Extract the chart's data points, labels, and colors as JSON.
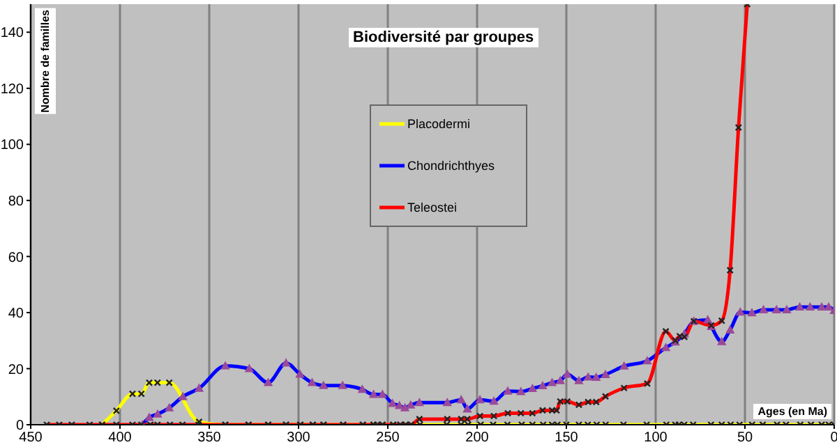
{
  "chart_data": {
    "type": "line",
    "title": "Biodiversité par groupes",
    "xlabel": "Ages (en Ma)",
    "ylabel": "Nombre de familles",
    "xlim": [
      450,
      0
    ],
    "xticks": [
      450,
      400,
      350,
      300,
      250,
      200,
      150,
      100,
      50,
      0
    ],
    "ylim": [
      0,
      150
    ],
    "yticks": [
      0,
      20,
      40,
      60,
      80,
      100,
      120,
      140
    ],
    "grid": "x",
    "legend": "top",
    "series": [
      {
        "name": "Placodermi",
        "color": "#ffff00",
        "marker": "cross",
        "x": [
          410,
          402,
          393,
          388,
          383.6,
          379,
          372.4,
          355.7,
          341,
          328,
          317,
          307,
          299,
          292,
          286,
          275,
          264,
          258,
          253,
          247,
          243,
          240,
          237,
          232,
          217,
          209,
          205,
          198,
          191,
          183,
          175,
          169,
          163,
          158,
          155,
          150,
          143,
          138,
          133,
          128,
          118,
          105,
          94,
          89,
          87,
          84,
          79,
          69,
          63,
          58,
          53,
          46,
          40,
          32,
          27,
          19,
          13,
          7,
          3,
          0
        ],
        "values": [
          0,
          5,
          11,
          11,
          15,
          15,
          15,
          1,
          0,
          0,
          0,
          0,
          0,
          0,
          0,
          0,
          0,
          0,
          0,
          0,
          0,
          0,
          0,
          0,
          0,
          0,
          0,
          0,
          0,
          0,
          0,
          0,
          0,
          0,
          0,
          0,
          0,
          0,
          0,
          0,
          0,
          0,
          0,
          0,
          0,
          0,
          0,
          0,
          0,
          0,
          0,
          0,
          0,
          0,
          0,
          0,
          0,
          0,
          0,
          0
        ]
      },
      {
        "name": "Chondrichthyes",
        "color": "#0000ff",
        "marker": "triangle",
        "x": [
          387.5,
          383.6,
          378.9,
          372.4,
          364.8,
          355.7,
          341,
          327.6,
          317,
          307,
          299.2,
          292.4,
          286,
          275.3,
          264.3,
          258,
          253,
          247.4,
          243.5,
          240.4,
          237.2,
          232.3,
          216.7,
          208.9,
          205.5,
          198.4,
          190.6,
          182.8,
          175.5,
          169,
          163.3,
          158,
          153.4,
          149.5,
          143,
          137.8,
          133.3,
          128.1,
          117.7,
          104.7,
          94.3,
          89,
          83.9,
          78.6,
          70.8,
          68.8,
          63,
          58.3,
          52.6,
          46.1,
          39.6,
          32.3,
          26.6,
          19.3,
          13.5,
          7,
          3.1,
          0
        ],
        "values": [
          0,
          2.6,
          3.8,
          6,
          10,
          13,
          21,
          20,
          15,
          22,
          18,
          15,
          14,
          14,
          12.6,
          10.8,
          10.8,
          7.6,
          6.8,
          6,
          7,
          7.9,
          7.9,
          8.9,
          5.6,
          8.9,
          8.4,
          12,
          11.8,
          12.9,
          13.9,
          15,
          15.7,
          18,
          15.7,
          17,
          16.9,
          17.9,
          20.9,
          22.8,
          27.5,
          29.5,
          32.4,
          36.9,
          37.4,
          35,
          29.6,
          33.8,
          40.2,
          39.9,
          41,
          41,
          41,
          42,
          42,
          42,
          42,
          40.7
        ]
      },
      {
        "name": "Teleostei",
        "color": "#ff0000",
        "marker": "cross",
        "x": [
          441,
          434,
          427,
          417,
          410,
          402,
          393,
          388,
          383,
          379,
          372,
          365,
          356,
          341,
          328,
          317,
          307,
          299,
          292,
          286,
          275,
          264,
          258,
          256,
          253,
          247,
          243,
          240,
          237,
          232.3,
          216.7,
          208.9,
          205.5,
          198.4,
          190.6,
          182.8,
          175.5,
          169,
          163.3,
          158,
          155.5,
          153.4,
          149.5,
          143,
          137.8,
          133.3,
          128.1,
          117.7,
          104.7,
          94.3,
          89,
          86.5,
          83.9,
          78.6,
          68.9,
          63,
          58.3,
          53.6,
          48.7
        ],
        "values": [
          0,
          0,
          0,
          0,
          0,
          0,
          0,
          0,
          0,
          0,
          0,
          0,
          0,
          0,
          0,
          0,
          0,
          0,
          0,
          0,
          0,
          0,
          0,
          0,
          0,
          0,
          0,
          0,
          0,
          2,
          2,
          2,
          2,
          3.1,
          3.1,
          4.1,
          4.1,
          4.1,
          5.1,
          5.1,
          5.1,
          8.3,
          8.3,
          7.1,
          8.1,
          8.1,
          10.1,
          13.1,
          14.7,
          33.3,
          30,
          31.6,
          31.3,
          36.9,
          35.4,
          37.1,
          55.1,
          106,
          150
        ]
      }
    ]
  }
}
